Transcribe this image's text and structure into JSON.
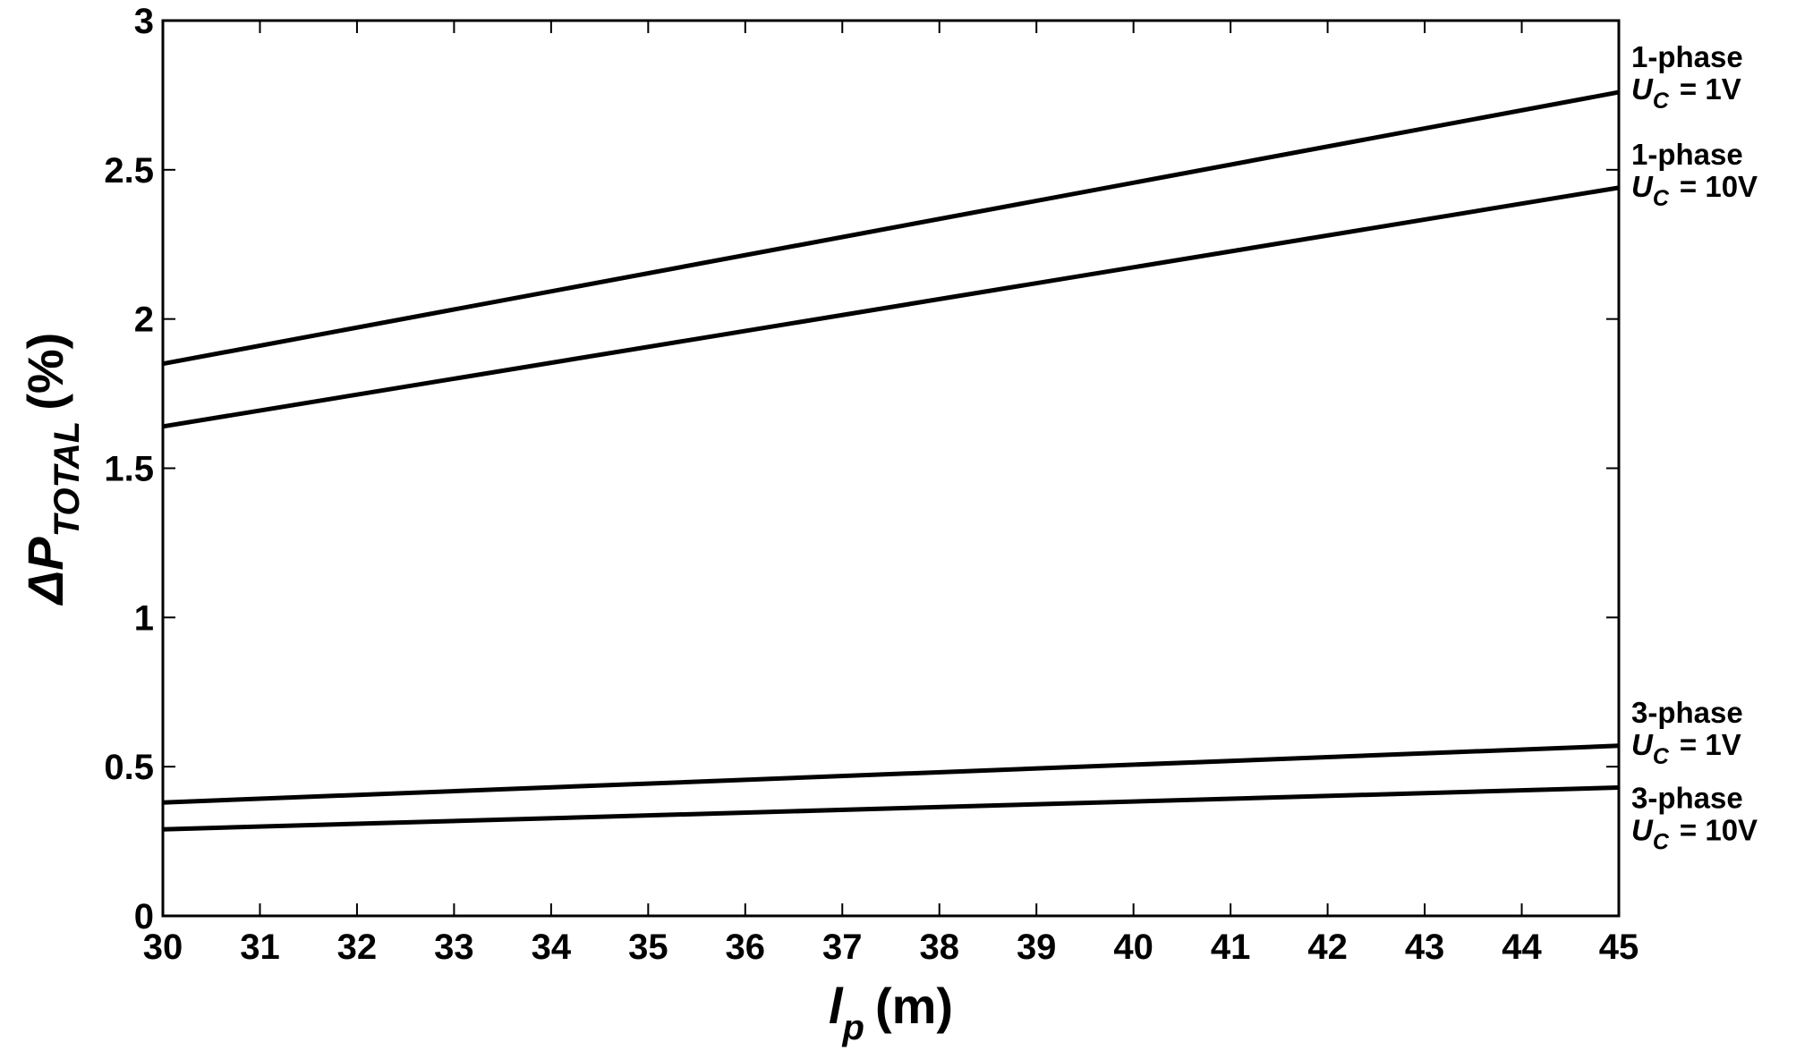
{
  "chart_data": {
    "type": "line",
    "xlabel": {
      "symbol": "l",
      "subscript": "p",
      "unit": "(m)"
    },
    "ylabel": {
      "symbol": "ΔP",
      "subscript": "TOTAL",
      "unit": "(%)"
    },
    "x": [
      30,
      45
    ],
    "series": [
      {
        "name": "1-phase",
        "condition": {
          "symbol": "U",
          "subscript": "C",
          "text": "= 1V"
        },
        "color": "#000000",
        "values": [
          1.85,
          2.76
        ]
      },
      {
        "name": "1-phase",
        "condition": {
          "symbol": "U",
          "subscript": "C",
          "text": "= 10V"
        },
        "color": "#000000",
        "values": [
          1.64,
          2.44
        ]
      },
      {
        "name": "3-phase",
        "condition": {
          "symbol": "U",
          "subscript": "C",
          "text": "= 1V"
        },
        "color": "#000000",
        "values": [
          0.38,
          0.57
        ]
      },
      {
        "name": "3-phase",
        "condition": {
          "symbol": "U",
          "subscript": "C",
          "text": "= 10V"
        },
        "color": "#000000",
        "values": [
          0.29,
          0.43
        ]
      }
    ],
    "xlim": [
      30,
      45
    ],
    "xticks": [
      30,
      31,
      32,
      33,
      34,
      35,
      36,
      37,
      38,
      39,
      40,
      41,
      42,
      43,
      44,
      45
    ],
    "ylim": [
      0,
      3
    ],
    "yticks": [
      0,
      0.5,
      1,
      1.5,
      2,
      2.5,
      3
    ],
    "grid": false
  }
}
